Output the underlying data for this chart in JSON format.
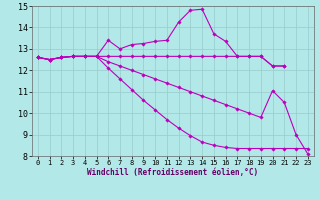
{
  "xlabel": "Windchill (Refroidissement éolien,°C)",
  "background_color": "#b3e8e8",
  "line_color": "#bb00bb",
  "grid_color": "#99cccc",
  "xlim_min": -0.5,
  "xlim_max": 23.5,
  "ylim_min": 8,
  "ylim_max": 15,
  "xticks": [
    0,
    1,
    2,
    3,
    4,
    5,
    6,
    7,
    8,
    9,
    10,
    11,
    12,
    13,
    14,
    15,
    16,
    17,
    18,
    19,
    20,
    21,
    22,
    23
  ],
  "yticks": [
    8,
    9,
    10,
    11,
    12,
    13,
    14,
    15
  ],
  "curves": [
    {
      "x": [
        0,
        1,
        2,
        3,
        4,
        5,
        6,
        7,
        8,
        9,
        10,
        11,
        12,
        13,
        14,
        15,
        16,
        17,
        18,
        19,
        20,
        21
      ],
      "y": [
        12.6,
        12.5,
        12.6,
        12.65,
        12.65,
        12.65,
        13.4,
        13.0,
        13.2,
        13.25,
        13.35,
        13.4,
        14.25,
        14.8,
        14.85,
        13.7,
        13.35,
        12.65,
        12.65,
        12.65,
        12.2,
        12.2
      ]
    },
    {
      "x": [
        0,
        1,
        2,
        3,
        4,
        5,
        6,
        7,
        8,
        9,
        10,
        11,
        12,
        13,
        14,
        15,
        16,
        17,
        18,
        19,
        20,
        21
      ],
      "y": [
        12.6,
        12.5,
        12.6,
        12.65,
        12.65,
        12.65,
        12.65,
        12.65,
        12.65,
        12.65,
        12.65,
        12.65,
        12.65,
        12.65,
        12.65,
        12.65,
        12.65,
        12.65,
        12.65,
        12.65,
        12.2,
        12.2
      ]
    },
    {
      "x": [
        0,
        1,
        2,
        3,
        4,
        5,
        6,
        7,
        8,
        9,
        10,
        11,
        12,
        13,
        14,
        15,
        16,
        17,
        18,
        19,
        20,
        21,
        22,
        23
      ],
      "y": [
        12.6,
        12.5,
        12.6,
        12.65,
        12.65,
        12.65,
        12.4,
        12.2,
        12.0,
        11.8,
        11.6,
        11.4,
        11.2,
        11.0,
        10.8,
        10.6,
        10.4,
        10.2,
        10.0,
        9.8,
        11.05,
        10.5,
        9.0,
        8.1
      ]
    },
    {
      "x": [
        0,
        1,
        2,
        3,
        4,
        5,
        6,
        7,
        8,
        9,
        10,
        11,
        12,
        13,
        14,
        15,
        16,
        17,
        18,
        19,
        20,
        21,
        22,
        23
      ],
      "y": [
        12.6,
        12.5,
        12.6,
        12.65,
        12.65,
        12.65,
        12.1,
        11.6,
        11.1,
        10.6,
        10.15,
        9.7,
        9.3,
        8.95,
        8.65,
        8.5,
        8.4,
        8.35,
        8.35,
        8.35,
        8.35,
        8.35,
        8.35,
        8.35
      ]
    }
  ]
}
